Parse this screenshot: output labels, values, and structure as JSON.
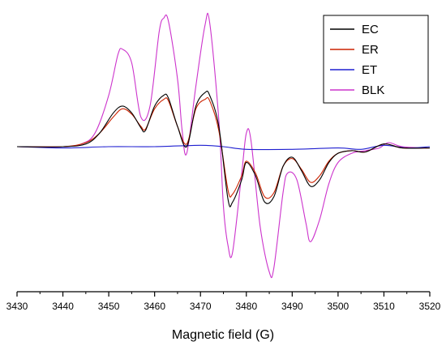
{
  "chart_data": {
    "type": "line",
    "xlabel": "Magnetic field (G)",
    "xlim": [
      3430,
      3520
    ],
    "x_ticks": [
      3430,
      3440,
      3450,
      3460,
      3470,
      3480,
      3490,
      3500,
      3510,
      3520
    ],
    "ylim": [
      -105,
      100
    ],
    "legend_position": "top-right",
    "grid": false,
    "series": [
      {
        "name": "EC",
        "color": "#000000",
        "points": [
          [
            3430,
            0
          ],
          [
            3440,
            0
          ],
          [
            3445,
            2
          ],
          [
            3448,
            10
          ],
          [
            3451,
            25
          ],
          [
            3453,
            30
          ],
          [
            3455,
            25
          ],
          [
            3457,
            14
          ],
          [
            3458,
            12
          ],
          [
            3460,
            30
          ],
          [
            3462,
            38
          ],
          [
            3463,
            36
          ],
          [
            3465,
            15
          ],
          [
            3467,
            0
          ],
          [
            3469,
            30
          ],
          [
            3471,
            40
          ],
          [
            3472,
            38
          ],
          [
            3474,
            15
          ],
          [
            3476,
            -40
          ],
          [
            3477,
            -42
          ],
          [
            3479,
            -25
          ],
          [
            3480,
            -12
          ],
          [
            3482,
            -22
          ],
          [
            3484,
            -42
          ],
          [
            3486,
            -38
          ],
          [
            3488,
            -15
          ],
          [
            3490,
            -8
          ],
          [
            3492,
            -18
          ],
          [
            3494,
            -30
          ],
          [
            3496,
            -25
          ],
          [
            3498,
            -12
          ],
          [
            3500,
            -5
          ],
          [
            3503,
            -3
          ],
          [
            3506,
            -4
          ],
          [
            3510,
            2
          ],
          [
            3514,
            -1
          ],
          [
            3520,
            -1
          ]
        ]
      },
      {
        "name": "ER",
        "color": "#cc2200",
        "points": [
          [
            3430,
            0
          ],
          [
            3440,
            0
          ],
          [
            3445,
            3
          ],
          [
            3448,
            10
          ],
          [
            3451,
            22
          ],
          [
            3453,
            28
          ],
          [
            3455,
            24
          ],
          [
            3457,
            15
          ],
          [
            3458,
            13
          ],
          [
            3460,
            28
          ],
          [
            3462,
            35
          ],
          [
            3463,
            34
          ],
          [
            3465,
            15
          ],
          [
            3467,
            2
          ],
          [
            3469,
            28
          ],
          [
            3471,
            35
          ],
          [
            3472,
            34
          ],
          [
            3474,
            12
          ],
          [
            3476,
            -33
          ],
          [
            3477,
            -36
          ],
          [
            3479,
            -22
          ],
          [
            3480,
            -11
          ],
          [
            3482,
            -20
          ],
          [
            3484,
            -38
          ],
          [
            3486,
            -35
          ],
          [
            3488,
            -15
          ],
          [
            3490,
            -9
          ],
          [
            3492,
            -17
          ],
          [
            3494,
            -27
          ],
          [
            3496,
            -22
          ],
          [
            3498,
            -11
          ],
          [
            3500,
            -5
          ],
          [
            3503,
            -3
          ],
          [
            3506,
            -4
          ],
          [
            3510,
            2
          ],
          [
            3514,
            -1
          ],
          [
            3520,
            -1
          ]
        ]
      },
      {
        "name": "ET",
        "color": "#1f1fd0",
        "points": [
          [
            3430,
            0
          ],
          [
            3440,
            -1
          ],
          [
            3450,
            0
          ],
          [
            3460,
            0
          ],
          [
            3470,
            1
          ],
          [
            3475,
            0
          ],
          [
            3480,
            -2
          ],
          [
            3490,
            -2
          ],
          [
            3500,
            -1
          ],
          [
            3505,
            -2
          ],
          [
            3510,
            1
          ],
          [
            3515,
            -1
          ],
          [
            3520,
            0
          ]
        ]
      },
      {
        "name": "BLK",
        "color": "#cc33cc",
        "points": [
          [
            3430,
            0
          ],
          [
            3440,
            0
          ],
          [
            3444,
            2
          ],
          [
            3447,
            10
          ],
          [
            3450,
            38
          ],
          [
            3452,
            68
          ],
          [
            3453,
            72
          ],
          [
            3455,
            62
          ],
          [
            3457,
            22
          ],
          [
            3459,
            30
          ],
          [
            3461,
            85
          ],
          [
            3462,
            95
          ],
          [
            3463,
            93
          ],
          [
            3465,
            50
          ],
          [
            3466,
            12
          ],
          [
            3467,
            -5
          ],
          [
            3469,
            45
          ],
          [
            3471,
            90
          ],
          [
            3472,
            92
          ],
          [
            3474,
            20
          ],
          [
            3475,
            -45
          ],
          [
            3476,
            -75
          ],
          [
            3477,
            -80
          ],
          [
            3479,
            -20
          ],
          [
            3480,
            10
          ],
          [
            3481,
            5
          ],
          [
            3483,
            -60
          ],
          [
            3485,
            -95
          ],
          [
            3486,
            -92
          ],
          [
            3488,
            -35
          ],
          [
            3489,
            -20
          ],
          [
            3491,
            -25
          ],
          [
            3493,
            -58
          ],
          [
            3494,
            -72
          ],
          [
            3496,
            -55
          ],
          [
            3498,
            -28
          ],
          [
            3500,
            -12
          ],
          [
            3503,
            -5
          ],
          [
            3506,
            -3
          ],
          [
            3509,
            -1
          ],
          [
            3511,
            3
          ],
          [
            3514,
            0
          ],
          [
            3520,
            -1
          ]
        ]
      }
    ]
  }
}
